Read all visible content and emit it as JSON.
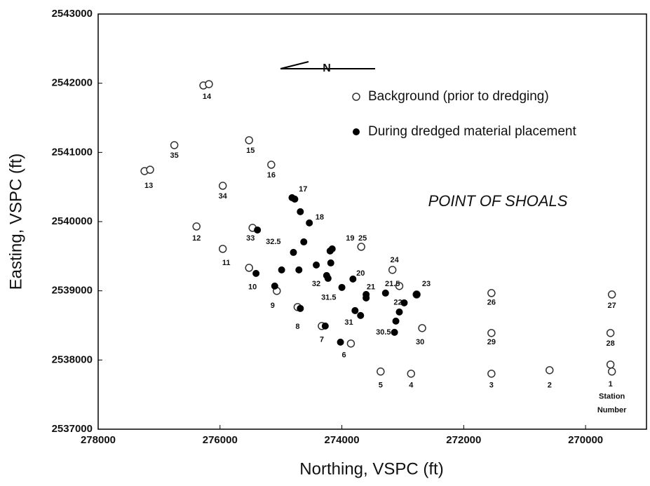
{
  "chart_data": {
    "type": "scatter",
    "x_label": "Northing, VSPC (ft)",
    "y_label": "Easting, VSPC (ft)",
    "xlim": [
      278000,
      269000
    ],
    "ylim": [
      2537000,
      2543000
    ],
    "xticks": [
      278000,
      276000,
      274000,
      272000,
      270000
    ],
    "yticks": [
      2537000,
      2538000,
      2539000,
      2540000,
      2541000,
      2542000,
      2543000
    ],
    "legend": "top-right",
    "series": [
      {
        "name": "Background (prior to dredging)",
        "color": "#333",
        "marker": "open",
        "x": [
          276273,
          276182,
          276750,
          277239,
          277148,
          275523,
          275159,
          275955,
          276386,
          275466,
          275955,
          275523,
          275068,
          274727,
          274330,
          273852,
          273364,
          272864,
          271545,
          270591,
          269591,
          269568,
          271545,
          269568,
          271545,
          269591,
          272682,
          273682,
          273170,
          272773,
          273057
        ],
        "values": [
          2541967,
          2541987,
          2541105,
          2540730,
          2540750,
          2541176,
          2540822,
          2540518,
          2539930,
          2539910,
          2539606,
          2539332,
          2538998,
          2538765,
          2538491,
          2538238,
          2537833,
          2537802,
          2537802,
          2537853,
          2537934,
          2537833,
          2538967,
          2538947,
          2538390,
          2538390,
          2538461,
          2539636,
          2539302,
          2538947,
          2539069
        ]
      },
      {
        "name": "During dredged material placement",
        "color": "#000",
        "marker": "filled",
        "x": [
          274818,
          274773,
          274682,
          274534,
          274625,
          274159,
          274193,
          274182,
          274420,
          274250,
          274227,
          274795,
          274705,
          274989,
          275386,
          275409,
          275102,
          274682,
          274273,
          274023,
          274000,
          273818,
          273602,
          273602,
          273784,
          273693,
          273284,
          272977,
          272773,
          273057,
          273114,
          273136
        ],
        "values": [
          2540346,
          2540325,
          2540143,
          2539981,
          2539707,
          2539606,
          2539576,
          2539403,
          2539373,
          2539221,
          2539180,
          2539555,
          2539302,
          2539302,
          2539879,
          2539251,
          2539069,
          2538745,
          2538491,
          2538258,
          2539049,
          2539170,
          2538947,
          2538897,
          2538714,
          2538643,
          2538967,
          2538826,
          2538947,
          2538694,
          2538562,
          2538400
        ]
      }
    ],
    "annotations": [
      {
        "text": "14",
        "x": 276216,
        "y": 2541804
      },
      {
        "text": "35",
        "x": 276750,
        "y": 2540953
      },
      {
        "text": "13",
        "x": 277170,
        "y": 2540518
      },
      {
        "text": "15",
        "x": 275500,
        "y": 2541024
      },
      {
        "text": "16",
        "x": 275159,
        "y": 2540670
      },
      {
        "text": "17",
        "x": 274636,
        "y": 2540467
      },
      {
        "text": "34",
        "x": 275955,
        "y": 2540366
      },
      {
        "text": "18",
        "x": 274364,
        "y": 2540062
      },
      {
        "text": "12",
        "x": 276386,
        "y": 2539758
      },
      {
        "text": "33",
        "x": 275500,
        "y": 2539758
      },
      {
        "text": "19",
        "x": 273864,
        "y": 2539758
      },
      {
        "text": "25",
        "x": 273659,
        "y": 2539758
      },
      {
        "text": "32.5",
        "x": 275125,
        "y": 2539707
      },
      {
        "text": "11",
        "x": 275898,
        "y": 2539403
      },
      {
        "text": "24",
        "x": 273136,
        "y": 2539444
      },
      {
        "text": "32",
        "x": 274420,
        "y": 2539099
      },
      {
        "text": "20",
        "x": 273693,
        "y": 2539251
      },
      {
        "text": "21.5",
        "x": 273170,
        "y": 2539099
      },
      {
        "text": "23",
        "x": 272614,
        "y": 2539099
      },
      {
        "text": "10",
        "x": 275466,
        "y": 2539049
      },
      {
        "text": "21",
        "x": 273523,
        "y": 2539049
      },
      {
        "text": "31.5",
        "x": 274216,
        "y": 2538897
      },
      {
        "text": "9",
        "x": 275136,
        "y": 2538785
      },
      {
        "text": "22",
        "x": 273080,
        "y": 2538826
      },
      {
        "text": "26",
        "x": 271545,
        "y": 2538826
      },
      {
        "text": "27",
        "x": 269568,
        "y": 2538785
      },
      {
        "text": "31",
        "x": 273886,
        "y": 2538542
      },
      {
        "text": "8",
        "x": 274727,
        "y": 2538481
      },
      {
        "text": "30.5",
        "x": 273318,
        "y": 2538400
      },
      {
        "text": "7",
        "x": 274330,
        "y": 2538289
      },
      {
        "text": "30",
        "x": 272716,
        "y": 2538258
      },
      {
        "text": "29",
        "x": 271545,
        "y": 2538258
      },
      {
        "text": "28",
        "x": 269591,
        "y": 2538238
      },
      {
        "text": "6",
        "x": 273966,
        "y": 2538066
      },
      {
        "text": "5",
        "x": 273364,
        "y": 2537630
      },
      {
        "text": "4",
        "x": 272864,
        "y": 2537630
      },
      {
        "text": "3",
        "x": 271545,
        "y": 2537630
      },
      {
        "text": "2",
        "x": 270591,
        "y": 2537630
      },
      {
        "text": "1",
        "x": 269591,
        "y": 2537650
      },
      {
        "text": "Station",
        "x": 269568,
        "y": 2537468
      },
      {
        "text": "Number",
        "x": 269568,
        "y": 2537275
      }
    ],
    "location_label": "POINT OF SHOALS",
    "north_label": "N"
  }
}
